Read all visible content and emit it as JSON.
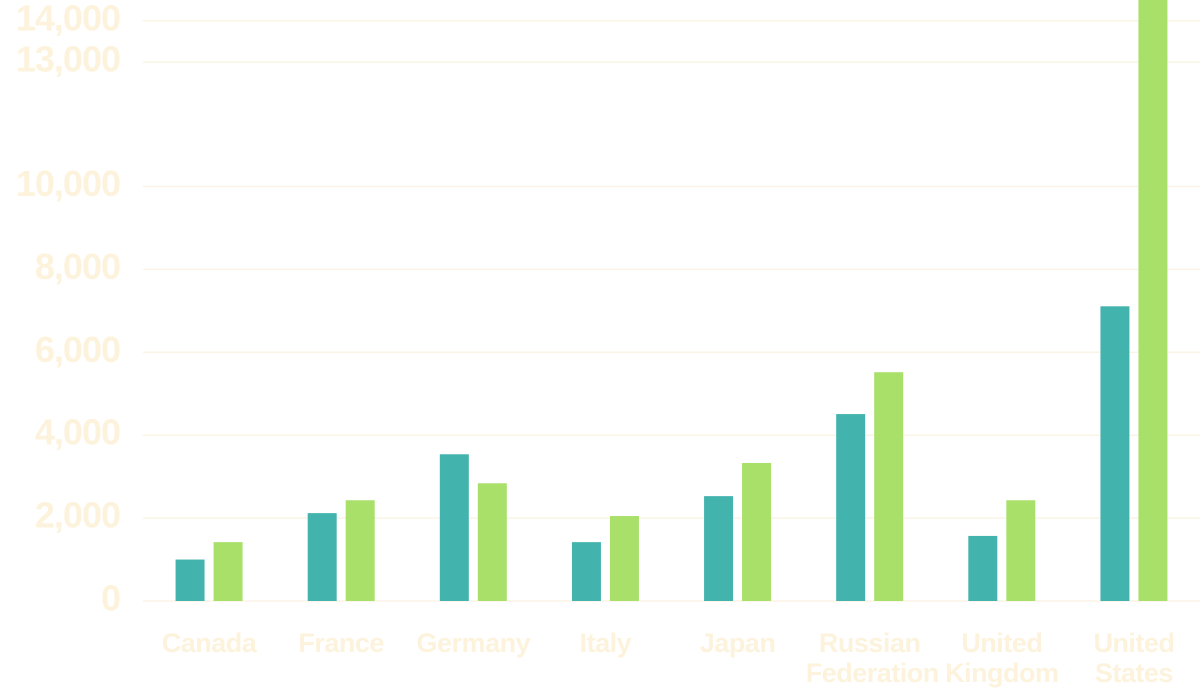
{
  "chart_data": {
    "type": "bar",
    "categories": [
      "Canada",
      "France",
      "Germany",
      "Italy",
      "Japan",
      "Russian Federation",
      "United Kingdom",
      "United States"
    ],
    "series": [
      {
        "color": "#43b3ad",
        "values": [
          1000,
          2120,
          3540,
          1420,
          2530,
          4510,
          1570,
          7110
        ]
      },
      {
        "color": "#a8e06a",
        "values": [
          1420,
          2430,
          2840,
          2050,
          3330,
          5520,
          2430,
          14500
        ]
      }
    ],
    "ylim": [
      0,
      14500
    ],
    "yticks": [
      0,
      {
        "value": 2000,
        "label": "2,000"
      },
      {
        "value": 4000,
        "label": "4,000"
      },
      {
        "value": 6000,
        "label": "6,000"
      },
      {
        "value": 8000,
        "label": "8,000"
      },
      {
        "value": 10000,
        "label": "10,000"
      },
      {
        "value": 13000,
        "label": "13,000"
      },
      {
        "value": 14000,
        "label": "14,000"
      }
    ],
    "grid": true
  }
}
